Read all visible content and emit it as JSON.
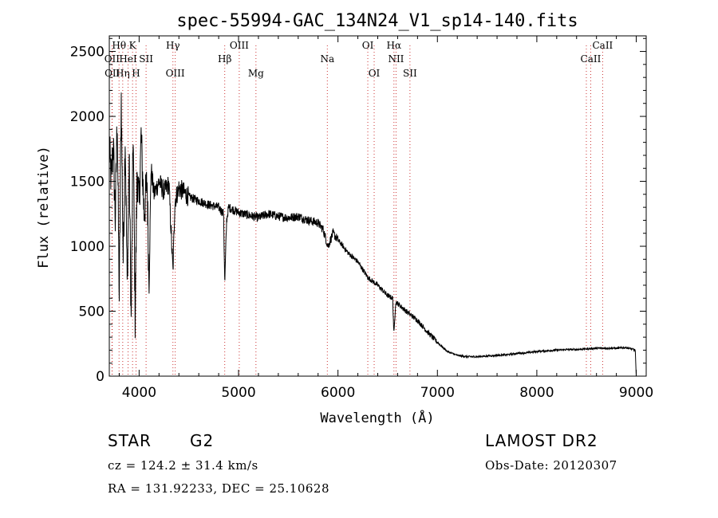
{
  "chart_data": {
    "type": "line",
    "title": "spec-55994-GAC_134N24_V1_sp14-140.fits",
    "xlabel": "Wavelength (Å)",
    "ylabel": "Flux (relative)",
    "xlim": [
      3700,
      9100
    ],
    "ylim": [
      0,
      2620
    ],
    "xticks": [
      4000,
      5000,
      6000,
      7000,
      8000,
      9000
    ],
    "yticks": [
      0,
      500,
      1000,
      1500,
      2000,
      2500
    ],
    "grid": false,
    "series": [
      {
        "name": "flux",
        "x": [
          3700,
          3720,
          3740,
          3760,
          3780,
          3800,
          3820,
          3840,
          3860,
          3880,
          3900,
          3920,
          3940,
          3960,
          3980,
          4000,
          4020,
          4050,
          4080,
          4100,
          4120,
          4150,
          4200,
          4250,
          4300,
          4340,
          4360,
          4400,
          4500,
          4600,
          4700,
          4800,
          4850,
          4861,
          4880,
          4900,
          5000,
          5100,
          5200,
          5300,
          5400,
          5500,
          5600,
          5700,
          5800,
          5850,
          5900,
          5950,
          6000,
          6050,
          6100,
          6200,
          6300,
          6400,
          6500,
          6550,
          6563,
          6580,
          6600,
          6700,
          6800,
          6900,
          7000,
          7100,
          7200,
          7300,
          7400,
          7500,
          7600,
          7700,
          7800,
          7900,
          8000,
          8100,
          8200,
          8300,
          8400,
          8500,
          8600,
          8700,
          8800,
          8900,
          8950,
          8990,
          9000
        ],
        "values": [
          1750,
          1500,
          1800,
          1200,
          2000,
          600,
          2150,
          900,
          1850,
          700,
          1700,
          400,
          1900,
          450,
          1600,
          1300,
          1850,
          1250,
          1500,
          700,
          1600,
          1400,
          1500,
          1420,
          1480,
          800,
          1350,
          1450,
          1380,
          1350,
          1320,
          1300,
          1250,
          700,
          1200,
          1300,
          1260,
          1240,
          1220,
          1250,
          1230,
          1220,
          1230,
          1200,
          1180,
          1130,
          1000,
          1100,
          1050,
          1000,
          950,
          880,
          760,
          700,
          620,
          600,
          320,
          570,
          560,
          490,
          430,
          340,
          260,
          190,
          160,
          150,
          150,
          155,
          160,
          165,
          175,
          180,
          190,
          195,
          200,
          205,
          205,
          210,
          215,
          215,
          215,
          220,
          210,
          200,
          0
        ]
      }
    ],
    "lines": [
      {
        "label": "Hθ",
        "x": 3798,
        "row": 1
      },
      {
        "label": "OII",
        "x": 3727,
        "row": 2
      },
      {
        "label": "OII",
        "x": 3730,
        "row": 3
      },
      {
        "label": "Hη",
        "x": 3835,
        "row": 3
      },
      {
        "label": "K",
        "x": 3934,
        "row": 1
      },
      {
        "label": "HeI",
        "x": 3889,
        "row": 2
      },
      {
        "label": "SII",
        "x": 4070,
        "row": 2
      },
      {
        "label": "H",
        "x": 3969,
        "row": 3
      },
      {
        "label": "Hγ",
        "x": 4340,
        "row": 1
      },
      {
        "label": "OIII",
        "x": 4363,
        "row": 3
      },
      {
        "label": "OIII",
        "x": 5007,
        "row": 1
      },
      {
        "label": "Hβ",
        "x": 4861,
        "row": 2
      },
      {
        "label": "Mg",
        "x": 5175,
        "row": 3
      },
      {
        "label": "Na",
        "x": 5893,
        "row": 2
      },
      {
        "label": "OI",
        "x": 6300,
        "row": 1
      },
      {
        "label": "OI",
        "x": 6364,
        "row": 3
      },
      {
        "label": "Hα",
        "x": 6563,
        "row": 1
      },
      {
        "label": "NII",
        "x": 6584,
        "row": 2
      },
      {
        "label": "SII",
        "x": 6724,
        "row": 3
      },
      {
        "label": "CaII",
        "x": 8662,
        "row": 1
      },
      {
        "label": "CaII",
        "x": 8542,
        "row": 2
      },
      {
        "label": "",
        "x": 8498,
        "row": 0
      }
    ]
  },
  "info": {
    "object_class": "STAR",
    "subclass": "G2",
    "survey": "LAMOST DR2",
    "redshift_text": "cz = 124.2 ± 31.4 km/s",
    "obs_date_text": "Obs-Date: 20120307",
    "coords_text": "RA = 131.92233, DEC =  25.10628"
  }
}
